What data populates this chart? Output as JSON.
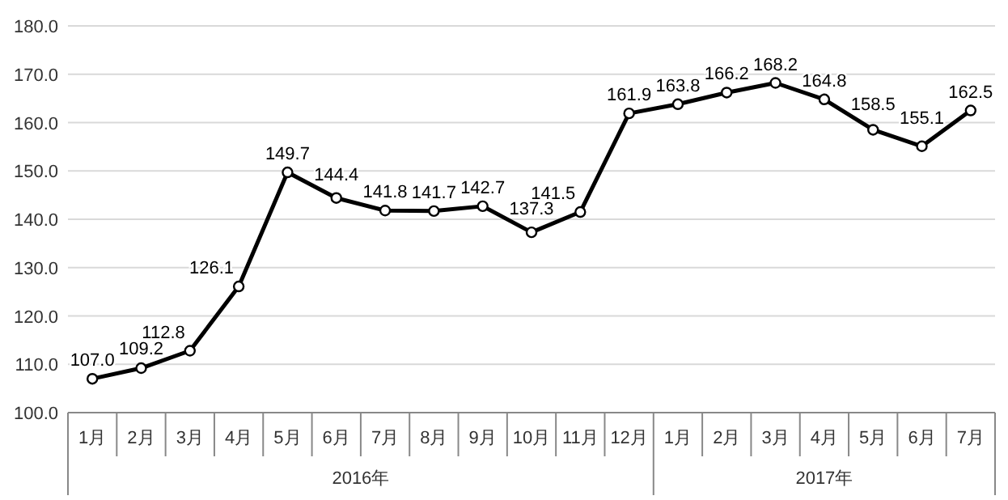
{
  "chart_data": {
    "type": "line",
    "categories": [
      "1月",
      "2月",
      "3月",
      "4月",
      "5月",
      "6月",
      "7月",
      "8月",
      "9月",
      "10月",
      "11月",
      "12月",
      "1月",
      "2月",
      "3月",
      "4月",
      "5月",
      "6月",
      "7月"
    ],
    "series": [
      {
        "color": "#000000",
        "values": [
          107.0,
          109.2,
          112.8,
          126.1,
          149.7,
          144.4,
          141.8,
          141.7,
          142.7,
          137.3,
          141.5,
          161.9,
          163.8,
          166.2,
          168.2,
          164.8,
          158.5,
          155.1,
          162.5
        ],
        "value_labels": [
          "107.0",
          "109.2",
          "112.8",
          "126.1",
          "149.7",
          "144.4",
          "141.8",
          "141.7",
          "142.7",
          "137.3",
          "141.5",
          "161.9",
          "163.8",
          "166.2",
          "168.2",
          "164.8",
          "158.5",
          "155.1",
          "162.5"
        ]
      }
    ],
    "annotations": [
      "2016年",
      "2017年"
    ],
    "ylim": [
      100,
      180
    ],
    "yticks": [
      {
        "value": 100,
        "label": "100.0"
      },
      {
        "value": 110,
        "label": "110.0"
      },
      {
        "value": 120,
        "label": "120.0"
      },
      {
        "value": 130,
        "label": "130.0"
      },
      {
        "value": 140,
        "label": "140.0"
      },
      {
        "value": 150,
        "label": "150.0"
      },
      {
        "value": 160,
        "label": "160.0"
      },
      {
        "value": 170,
        "label": "170.0"
      },
      {
        "value": 180,
        "label": "180.0"
      }
    ],
    "grid": "y",
    "marker": "circle",
    "line_style": "solid"
  }
}
